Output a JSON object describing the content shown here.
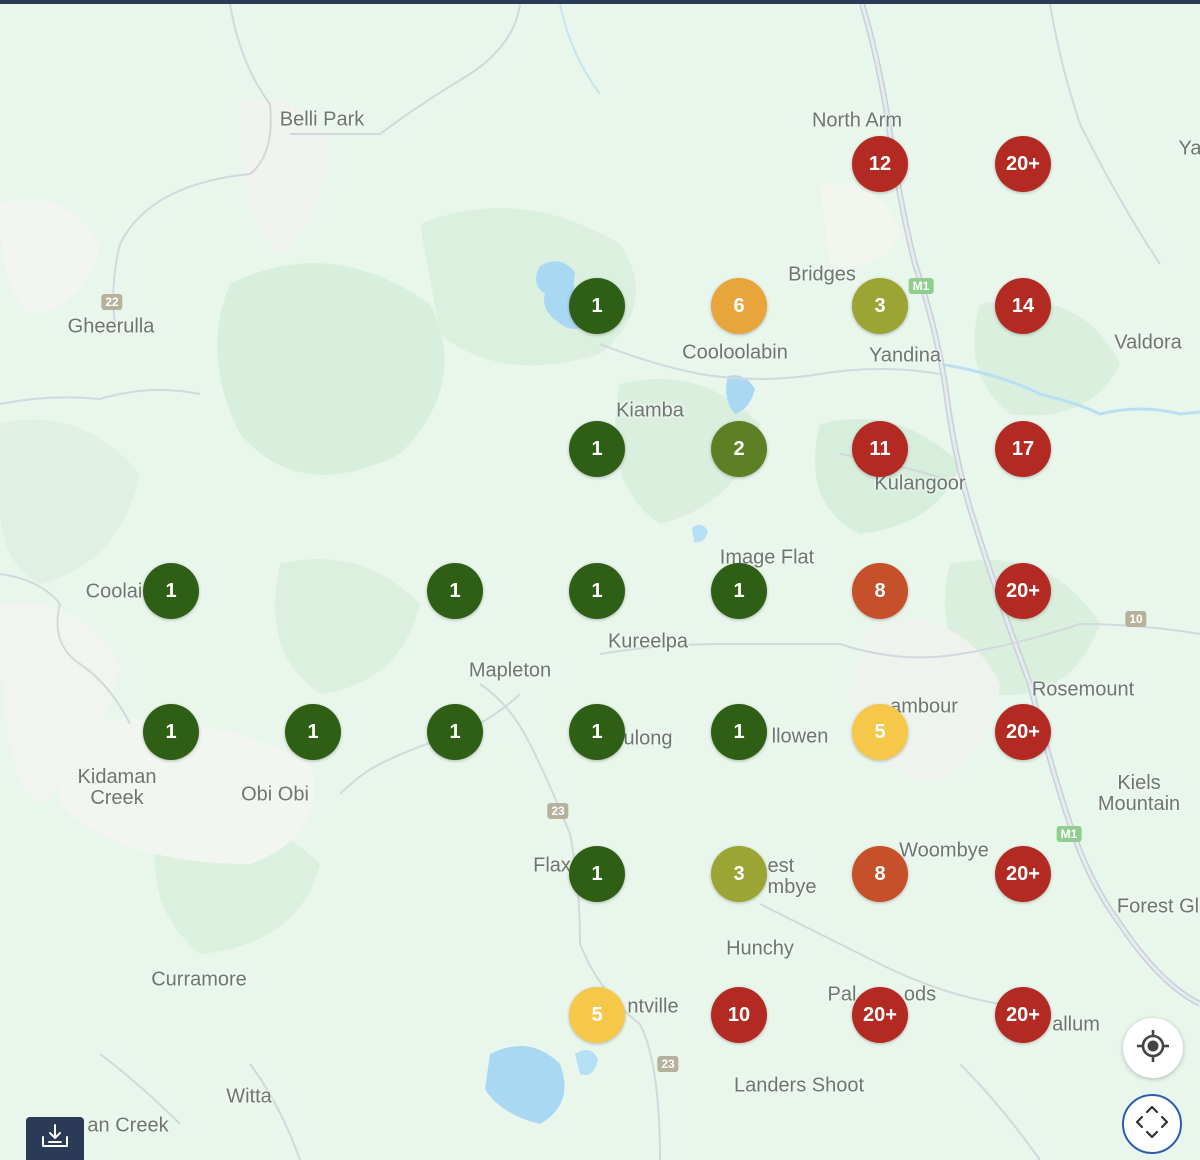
{
  "places": [
    {
      "id": "belli-park",
      "label": "Belli Park"
    },
    {
      "id": "north-arm",
      "label": "North Arm"
    },
    {
      "id": "ya",
      "label": "Ya"
    },
    {
      "id": "gheerulla",
      "label": "Gheerulla"
    },
    {
      "id": "bridges",
      "label": "Bridges"
    },
    {
      "id": "cooloolabin",
      "label": "Cooloolabin"
    },
    {
      "id": "yandina",
      "label": "Yandina"
    },
    {
      "id": "valdora",
      "label": "Valdora"
    },
    {
      "id": "kiamba",
      "label": "Kiamba"
    },
    {
      "id": "kulangoor",
      "label": "Kulangoor"
    },
    {
      "id": "image-flat",
      "label": "Image Flat"
    },
    {
      "id": "coolai",
      "label": "Coolai"
    },
    {
      "id": "kureelpa",
      "label": "Kureelpa"
    },
    {
      "id": "mapleton",
      "label": "Mapleton"
    },
    {
      "id": "rosemount",
      "label": "Rosemount"
    },
    {
      "id": "nambour",
      "label": "ambour"
    },
    {
      "id": "ulong",
      "label": "ulong"
    },
    {
      "id": "llowen",
      "label": "llowen"
    },
    {
      "id": "kidaman-creek",
      "label": "Kidaman\nCreek"
    },
    {
      "id": "obi-obi",
      "label": "Obi Obi"
    },
    {
      "id": "kiels-mountain",
      "label": "Kiels\nMountain"
    },
    {
      "id": "woombye",
      "label": "Woombye"
    },
    {
      "id": "flax",
      "label": "Flax"
    },
    {
      "id": "west-woombye",
      "label": "est\nmbye"
    },
    {
      "id": "forest-glen",
      "label": "Forest Gl"
    },
    {
      "id": "hunchy",
      "label": "Hunchy"
    },
    {
      "id": "curramore",
      "label": "Curramore"
    },
    {
      "id": "palmwoods-a",
      "label": "Pal"
    },
    {
      "id": "palmwoods-b",
      "label": "ods"
    },
    {
      "id": "montville",
      "label": "ntville"
    },
    {
      "id": "allum",
      "label": "allum"
    },
    {
      "id": "landers-shoot",
      "label": "Landers Shoot"
    },
    {
      "id": "witta",
      "label": "Witta"
    },
    {
      "id": "an-creek",
      "label": "an Creek"
    }
  ],
  "road_shields": [
    {
      "id": "s22",
      "label": "22",
      "kind": "state"
    },
    {
      "id": "m1-top",
      "label": "M1",
      "kind": "motorway"
    },
    {
      "id": "s10",
      "label": "10",
      "kind": "state"
    },
    {
      "id": "s23-a",
      "label": "23",
      "kind": "state"
    },
    {
      "id": "m1-bottom",
      "label": "M1",
      "kind": "motorway"
    },
    {
      "id": "s23-b",
      "label": "23",
      "kind": "state"
    }
  ],
  "cluster_colors": {
    "dark-green": "#2e5f14",
    "olive-green": "#5e8024",
    "yellow-green": "#9aa534",
    "yellow": "#f5c84a",
    "orange": "#e7a53b",
    "red-orange": "#c5502a",
    "red": "#b32a22"
  },
  "clusters": [
    {
      "count": "12",
      "level": "red"
    },
    {
      "count": "20+",
      "level": "red"
    },
    {
      "count": "1",
      "level": "dark-green"
    },
    {
      "count": "6",
      "level": "orange"
    },
    {
      "count": "3",
      "level": "yellow-green"
    },
    {
      "count": "14",
      "level": "red"
    },
    {
      "count": "1",
      "level": "dark-green"
    },
    {
      "count": "2",
      "level": "olive-green"
    },
    {
      "count": "11",
      "level": "red"
    },
    {
      "count": "17",
      "level": "red"
    },
    {
      "count": "1",
      "level": "dark-green"
    },
    {
      "count": "1",
      "level": "dark-green"
    },
    {
      "count": "1",
      "level": "dark-green"
    },
    {
      "count": "1",
      "level": "dark-green"
    },
    {
      "count": "8",
      "level": "red-orange"
    },
    {
      "count": "20+",
      "level": "red"
    },
    {
      "count": "1",
      "level": "dark-green"
    },
    {
      "count": "1",
      "level": "dark-green"
    },
    {
      "count": "1",
      "level": "dark-green"
    },
    {
      "count": "1",
      "level": "dark-green"
    },
    {
      "count": "1",
      "level": "dark-green"
    },
    {
      "count": "5",
      "level": "yellow"
    },
    {
      "count": "20+",
      "level": "red"
    },
    {
      "count": "1",
      "level": "dark-green"
    },
    {
      "count": "3",
      "level": "yellow-green"
    },
    {
      "count": "8",
      "level": "red-orange"
    },
    {
      "count": "20+",
      "level": "red"
    },
    {
      "count": "5",
      "level": "yellow"
    },
    {
      "count": "10",
      "level": "red"
    },
    {
      "count": "20+",
      "level": "red"
    },
    {
      "count": "20+",
      "level": "red"
    }
  ],
  "controls": {
    "locate_icon": "crosshair-icon",
    "fullscreen_icon": "expand-arrows-icon",
    "download_icon": "download-tray-icon"
  }
}
